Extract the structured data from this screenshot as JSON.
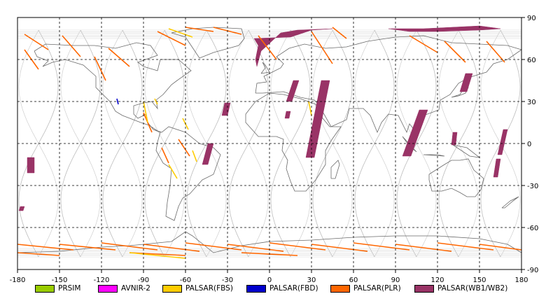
{
  "map": {
    "x_ticks": [
      "-180",
      "-150",
      "-120",
      "-90",
      "-60",
      "-30",
      "0",
      "30",
      "60",
      "90",
      "120",
      "150",
      "180"
    ],
    "y_ticks_right": [
      "90",
      "60",
      "30",
      "0",
      "-30",
      "-60",
      "-90"
    ]
  },
  "chart_data": {
    "type": "map",
    "projection": "equirectangular",
    "xlim": [
      -180,
      180
    ],
    "ylim": [
      -90,
      90
    ],
    "grid": true,
    "grid_style": "dashed",
    "legend_position": "bottom",
    "legend": [
      {
        "label": "PRSIM",
        "color": "#99cc00"
      },
      {
        "label": "AVNIR-2",
        "color": "#ff00ff"
      },
      {
        "label": "PALSAR(FBS)",
        "color": "#ffcc00"
      },
      {
        "label": "PALSAR(FBD)",
        "color": "#0000cc"
      },
      {
        "label": "PALSAR(PLR)",
        "color": "#ff6600"
      },
      {
        "label": "PALSAR(WB1/WB2)",
        "color": "#993366"
      }
    ],
    "swaths": [
      {
        "mode": "PALSAR(WB1/WB2)",
        "points": [
          [
            -11,
            75
          ],
          [
            15,
            76
          ],
          [
            30,
            81
          ],
          [
            45,
            82
          ],
          [
            20,
            81
          ],
          [
            8,
            79
          ],
          [
            -6,
            66
          ],
          [
            -9,
            55
          ],
          [
            -10,
            60
          ],
          [
            -8,
            70
          ]
        ],
        "closed": true
      },
      {
        "mode": "PALSAR(WB1/WB2)",
        "points": [
          [
            85,
            82
          ],
          [
            110,
            82
          ],
          [
            150,
            84
          ],
          [
            165,
            82
          ],
          [
            150,
            81
          ],
          [
            120,
            80
          ],
          [
            100,
            80
          ]
        ],
        "closed": true
      },
      {
        "mode": "PALSAR(WB1/WB2)",
        "points": [
          [
            107,
            24
          ],
          [
            113,
            24
          ],
          [
            101,
            -9
          ],
          [
            95,
            -9
          ]
        ],
        "closed": true
      },
      {
        "mode": "PALSAR(WB1/WB2)",
        "points": [
          [
            37,
            45
          ],
          [
            43,
            45
          ],
          [
            32,
            -10
          ],
          [
            26,
            -10
          ]
        ],
        "closed": true
      },
      {
        "mode": "PALSAR(WB1/WB2)",
        "points": [
          [
            17,
            45
          ],
          [
            21,
            45
          ],
          [
            16,
            30
          ],
          [
            12,
            30
          ]
        ],
        "closed": true
      },
      {
        "mode": "PALSAR(WB1/WB2)",
        "points": [
          [
            -32,
            29
          ],
          [
            -28,
            29
          ],
          [
            -30,
            20
          ],
          [
            -34,
            20
          ]
        ],
        "closed": true
      },
      {
        "mode": "PALSAR(WB1/WB2)",
        "points": [
          [
            -44,
            0
          ],
          [
            -40,
            0
          ],
          [
            -44,
            -15
          ],
          [
            -48,
            -15
          ]
        ],
        "closed": true
      },
      {
        "mode": "PALSAR(WB1/WB2)",
        "points": [
          [
            -173,
            -10
          ],
          [
            -168,
            -10
          ],
          [
            -168,
            -21
          ],
          [
            -173,
            -21
          ]
        ],
        "closed": true
      },
      {
        "mode": "PALSAR(WB1/WB2)",
        "points": [
          [
            140,
            50
          ],
          [
            145,
            50
          ],
          [
            141,
            37
          ],
          [
            136,
            37
          ]
        ],
        "closed": true
      },
      {
        "mode": "PALSAR(WB1/WB2)",
        "points": [
          [
            167,
            10
          ],
          [
            170,
            10
          ],
          [
            166,
            -8
          ],
          [
            163,
            -8
          ]
        ],
        "closed": true
      },
      {
        "mode": "PALSAR(WB1/WB2)",
        "points": [
          [
            162,
            -11
          ],
          [
            165,
            -11
          ],
          [
            163,
            -24
          ],
          [
            160,
            -24
          ]
        ],
        "closed": true
      },
      {
        "mode": "PALSAR(WB1/WB2)",
        "points": [
          [
            131,
            8
          ],
          [
            134,
            8
          ],
          [
            133,
            -1
          ],
          [
            130,
            -1
          ]
        ],
        "closed": true
      },
      {
        "mode": "PALSAR(WB1/WB2)",
        "points": [
          [
            12,
            23
          ],
          [
            15,
            23
          ],
          [
            14,
            18
          ],
          [
            11,
            18
          ]
        ],
        "closed": true
      },
      {
        "mode": "PALSAR(WB1/WB2)",
        "points": [
          [
            -178,
            -45
          ],
          [
            -175,
            -45
          ],
          [
            -176,
            -48
          ],
          [
            -179,
            -48
          ]
        ],
        "closed": true
      },
      {
        "mode": "PALSAR(PLR)",
        "points": [
          [
            -175,
            78
          ],
          [
            -158,
            67
          ]
        ]
      },
      {
        "mode": "PALSAR(PLR)",
        "points": [
          [
            -175,
            67
          ],
          [
            -165,
            53
          ]
        ]
      },
      {
        "mode": "PALSAR(PLR)",
        "points": [
          [
            -148,
            77
          ],
          [
            -135,
            62
          ]
        ]
      },
      {
        "mode": "PALSAR(PLR)",
        "points": [
          [
            -115,
            68
          ],
          [
            -100,
            55
          ]
        ]
      },
      {
        "mode": "PALSAR(PLR)",
        "points": [
          [
            -80,
            80
          ],
          [
            -60,
            70
          ]
        ]
      },
      {
        "mode": "PALSAR(PLR)",
        "points": [
          [
            -60,
            83
          ],
          [
            -40,
            80
          ]
        ]
      },
      {
        "mode": "PALSAR(PLR)",
        "points": [
          [
            -40,
            83
          ],
          [
            -20,
            78
          ]
        ]
      },
      {
        "mode": "PALSAR(PLR)",
        "points": [
          [
            -8,
            77
          ],
          [
            5,
            60
          ]
        ]
      },
      {
        "mode": "PALSAR(PLR)",
        "points": [
          [
            30,
            80
          ],
          [
            45,
            57
          ]
        ]
      },
      {
        "mode": "PALSAR(PLR)",
        "points": [
          [
            45,
            83
          ],
          [
            55,
            75
          ]
        ]
      },
      {
        "mode": "PALSAR(PLR)",
        "points": [
          [
            100,
            77
          ],
          [
            120,
            65
          ]
        ]
      },
      {
        "mode": "PALSAR(PLR)",
        "points": [
          [
            125,
            73
          ],
          [
            140,
            58
          ]
        ]
      },
      {
        "mode": "PALSAR(PLR)",
        "points": [
          [
            155,
            73
          ],
          [
            168,
            58
          ]
        ]
      },
      {
        "mode": "PALSAR(PLR)",
        "points": [
          [
            -125,
            62
          ],
          [
            -117,
            45
          ]
        ]
      },
      {
        "mode": "PALSAR(PLR)",
        "points": [
          [
            -65,
            3
          ],
          [
            -57,
            -9
          ]
        ]
      },
      {
        "mode": "PALSAR(PLR)",
        "points": [
          [
            -77,
            -3
          ],
          [
            -72,
            -14
          ]
        ]
      },
      {
        "mode": "PALSAR(PLR)",
        "points": [
          [
            -90,
            22
          ],
          [
            -84,
            8
          ]
        ]
      },
      {
        "mode": "PALSAR(PLR)",
        "points": [
          [
            -180,
            -72
          ],
          [
            -140,
            -76
          ]
        ]
      },
      {
        "mode": "PALSAR(PLR)",
        "points": [
          [
            -150,
            -72
          ],
          [
            -110,
            -76
          ]
        ]
      },
      {
        "mode": "PALSAR(PLR)",
        "points": [
          [
            -120,
            -71
          ],
          [
            -80,
            -76
          ]
        ]
      },
      {
        "mode": "PALSAR(PLR)",
        "points": [
          [
            -90,
            -72
          ],
          [
            -50,
            -77
          ]
        ]
      },
      {
        "mode": "PALSAR(PLR)",
        "points": [
          [
            -60,
            -71
          ],
          [
            -20,
            -76
          ]
        ]
      },
      {
        "mode": "PALSAR(PLR)",
        "points": [
          [
            -30,
            -72
          ],
          [
            10,
            -77
          ]
        ]
      },
      {
        "mode": "PALSAR(PLR)",
        "points": [
          [
            0,
            -71
          ],
          [
            40,
            -76
          ]
        ]
      },
      {
        "mode": "PALSAR(PLR)",
        "points": [
          [
            30,
            -72
          ],
          [
            70,
            -77
          ]
        ]
      },
      {
        "mode": "PALSAR(PLR)",
        "points": [
          [
            60,
            -71
          ],
          [
            100,
            -76
          ]
        ]
      },
      {
        "mode": "PALSAR(PLR)",
        "points": [
          [
            90,
            -72
          ],
          [
            130,
            -77
          ]
        ]
      },
      {
        "mode": "PALSAR(PLR)",
        "points": [
          [
            120,
            -71
          ],
          [
            160,
            -76
          ]
        ]
      },
      {
        "mode": "PALSAR(PLR)",
        "points": [
          [
            150,
            -72
          ],
          [
            180,
            -76
          ]
        ]
      },
      {
        "mode": "PALSAR(PLR)",
        "points": [
          [
            -180,
            -78
          ],
          [
            -150,
            -80
          ]
        ]
      },
      {
        "mode": "PALSAR(PLR)",
        "points": [
          [
            -100,
            -78
          ],
          [
            -60,
            -80
          ]
        ]
      },
      {
        "mode": "PALSAR(PLR)",
        "points": [
          [
            -20,
            -78
          ],
          [
            20,
            -80
          ]
        ]
      },
      {
        "mode": "PALSAR(FBS)",
        "points": [
          [
            -90,
            30
          ],
          [
            -87,
            15
          ]
        ]
      },
      {
        "mode": "PALSAR(FBS)",
        "points": [
          [
            -82,
            32
          ],
          [
            -80,
            28
          ]
        ]
      },
      {
        "mode": "PALSAR(FBS)",
        "points": [
          [
            -62,
            18
          ],
          [
            -58,
            10
          ]
        ]
      },
      {
        "mode": "PALSAR(FBS)",
        "points": [
          [
            -55,
            -5
          ],
          [
            -52,
            -13
          ]
        ]
      },
      {
        "mode": "PALSAR(FBS)",
        "points": [
          [
            -72,
            -15
          ],
          [
            -66,
            -25
          ]
        ]
      },
      {
        "mode": "PALSAR(FBS)",
        "points": [
          [
            28,
            30
          ],
          [
            30,
            20
          ]
        ]
      },
      {
        "mode": "PALSAR(FBS)",
        "points": [
          [
            -72,
            82
          ],
          [
            -55,
            76
          ]
        ]
      },
      {
        "mode": "PALSAR(FBS)",
        "points": [
          [
            -100,
            -78
          ],
          [
            -60,
            -82
          ]
        ]
      },
      {
        "mode": "PALSAR(FBD)",
        "points": [
          [
            -109,
            32
          ],
          [
            -108,
            28
          ]
        ]
      }
    ],
    "orbit_tracks_longitudes": [
      -165,
      -135,
      -105,
      -75,
      -45,
      -15,
      15,
      45,
      75,
      105,
      135,
      165
    ]
  }
}
